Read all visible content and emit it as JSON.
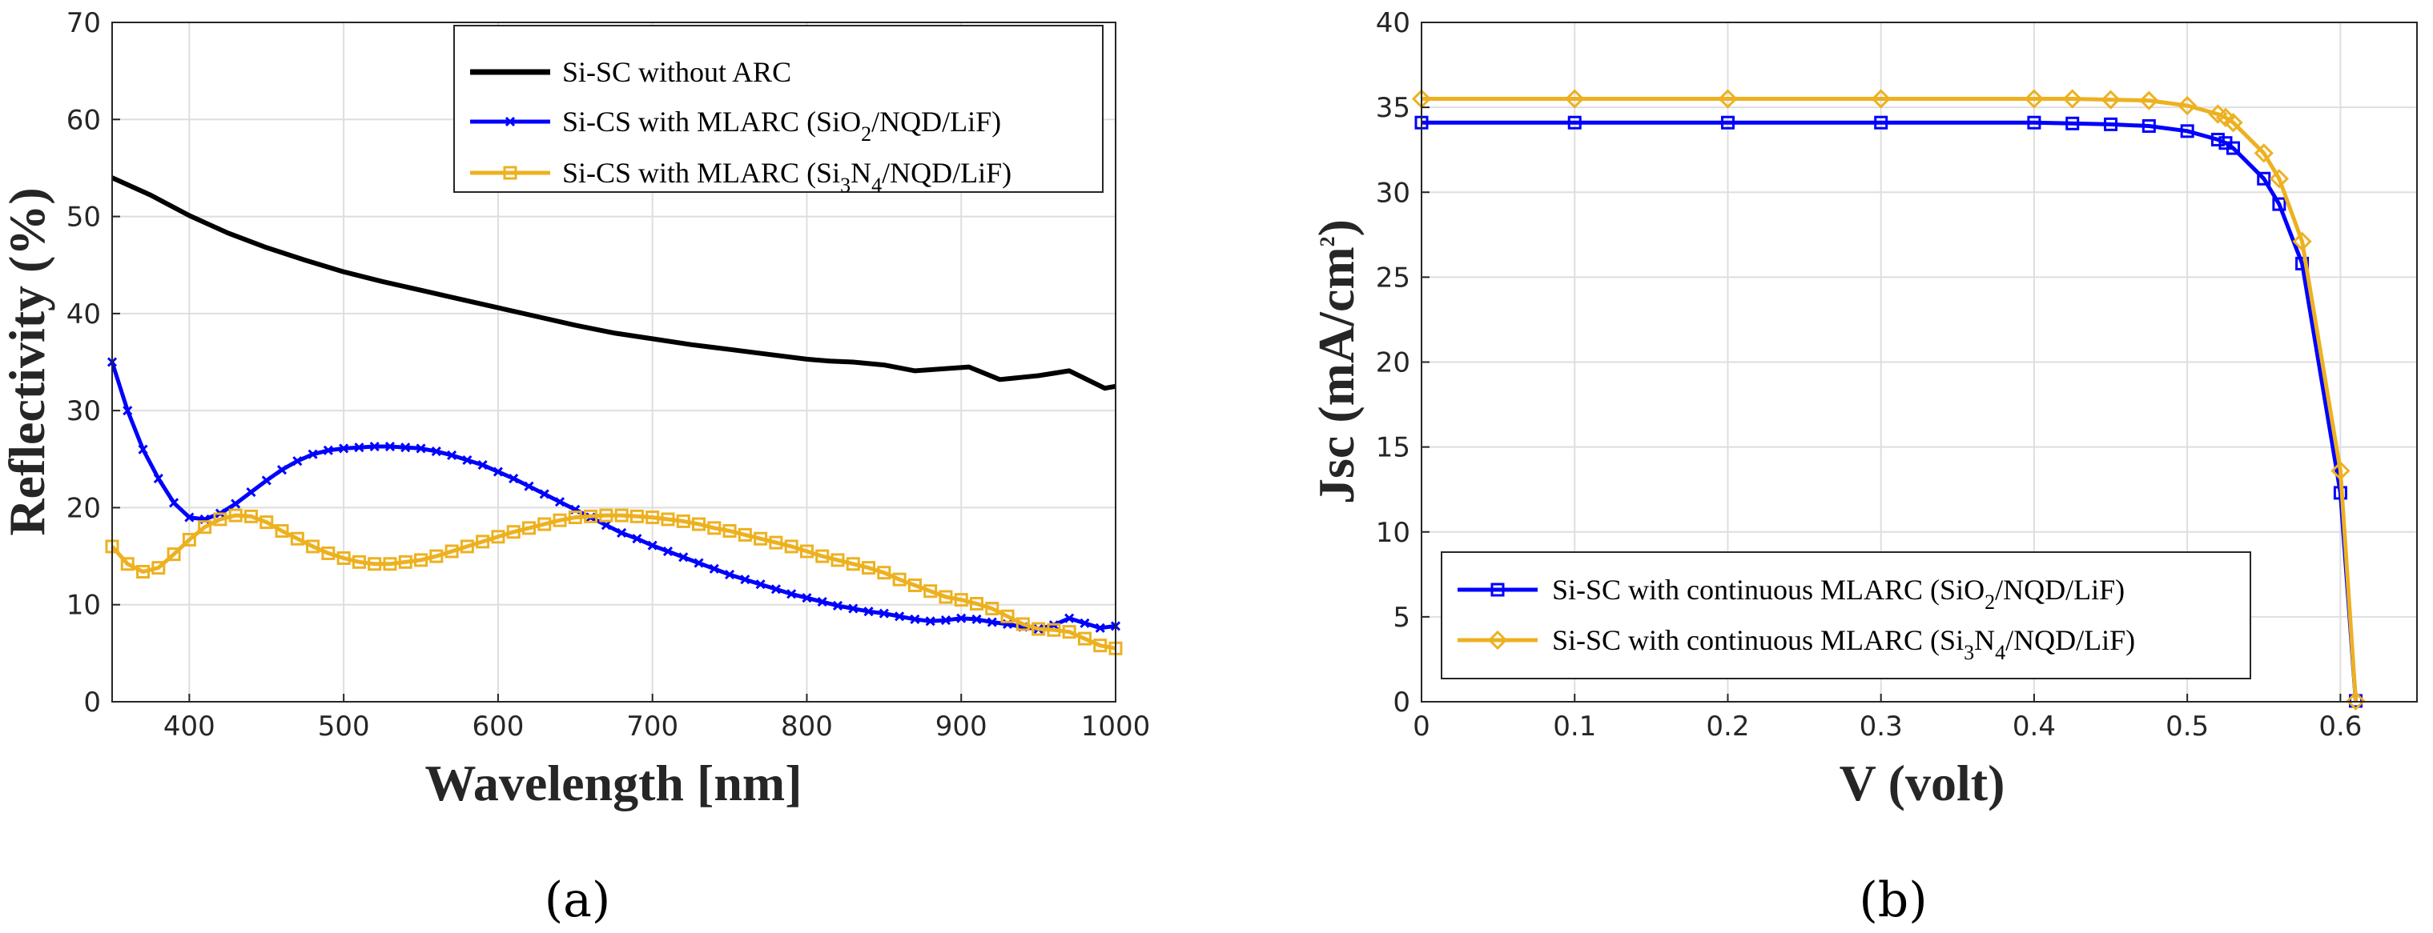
{
  "colors": {
    "black": "#000000",
    "blue": "#0000ff",
    "orange": "#edb120",
    "axis": "#262626",
    "grid": "#dedede"
  },
  "panels": {
    "a": "(a)",
    "b": "(b)"
  },
  "chart_data": [
    {
      "type": "line",
      "panel": "a",
      "xlabel": "Wavelength [nm]",
      "ylabel": "Reflectivity (%)",
      "xlim": [
        350,
        1000
      ],
      "ylim": [
        0,
        70
      ],
      "xticks": [
        400,
        500,
        600,
        700,
        800,
        900,
        1000
      ],
      "yticks": [
        0,
        10,
        20,
        30,
        40,
        50,
        60,
        70
      ],
      "grid": true,
      "legend_position": "top-right",
      "series": [
        {
          "key": "noarc",
          "legend": {
            "main": "Si-SC without ARC",
            "parts": []
          },
          "color": "#000000",
          "marker": "none",
          "points": [
            [
              350,
              54
            ],
            [
              375,
              52.2
            ],
            [
              400,
              50.1
            ],
            [
              425,
              48.3
            ],
            [
              450,
              46.8
            ],
            [
              475,
              45.5
            ],
            [
              500,
              44.3
            ],
            [
              525,
              43.3
            ],
            [
              550,
              42.4
            ],
            [
              575,
              41.5
            ],
            [
              600,
              40.6
            ],
            [
              625,
              39.7
            ],
            [
              650,
              38.8
            ],
            [
              675,
              38
            ],
            [
              700,
              37.4
            ],
            [
              725,
              36.8
            ],
            [
              750,
              36.3
            ],
            [
              775,
              35.8
            ],
            [
              800,
              35.3
            ],
            [
              815,
              35.1
            ],
            [
              830,
              35
            ],
            [
              850,
              34.7
            ],
            [
              870,
              34.1
            ],
            [
              905,
              34.5
            ],
            [
              925,
              33.2
            ],
            [
              950,
              33.6
            ],
            [
              970,
              34.1
            ],
            [
              993,
              32.3
            ],
            [
              1000,
              32.5
            ]
          ]
        },
        {
          "key": "sio2",
          "legend": {
            "main": "",
            "parts": [
              "Si-CS with MLARC (SiO",
              "2",
              "/NQD/LiF)"
            ]
          },
          "color": "#0000ff",
          "marker": "x",
          "points": [
            [
              350,
              35
            ],
            [
              360,
              30
            ],
            [
              370,
              26
            ],
            [
              380,
              23
            ],
            [
              390,
              20.5
            ],
            [
              400,
              19
            ],
            [
              410,
              18.8
            ],
            [
              420,
              19.4
            ],
            [
              430,
              20.4
            ],
            [
              440,
              21.6
            ],
            [
              450,
              22.8
            ],
            [
              460,
              23.9
            ],
            [
              470,
              24.8
            ],
            [
              480,
              25.5
            ],
            [
              490,
              25.9
            ],
            [
              500,
              26.1
            ],
            [
              510,
              26.2
            ],
            [
              520,
              26.3
            ],
            [
              530,
              26.3
            ],
            [
              540,
              26.2
            ],
            [
              550,
              26.1
            ],
            [
              560,
              25.8
            ],
            [
              570,
              25.4
            ],
            [
              580,
              24.9
            ],
            [
              590,
              24.4
            ],
            [
              600,
              23.7
            ],
            [
              610,
              23
            ],
            [
              620,
              22.2
            ],
            [
              630,
              21.4
            ],
            [
              640,
              20.6
            ],
            [
              650,
              19.8
            ],
            [
              660,
              19
            ],
            [
              670,
              18.2
            ],
            [
              680,
              17.4
            ],
            [
              690,
              16.8
            ],
            [
              700,
              16.1
            ],
            [
              710,
              15.5
            ],
            [
              720,
              14.9
            ],
            [
              730,
              14.3
            ],
            [
              740,
              13.7
            ],
            [
              750,
              13.1
            ],
            [
              760,
              12.6
            ],
            [
              770,
              12.1
            ],
            [
              780,
              11.6
            ],
            [
              790,
              11.1
            ],
            [
              800,
              10.7
            ],
            [
              810,
              10.3
            ],
            [
              820,
              9.9
            ],
            [
              830,
              9.6
            ],
            [
              840,
              9.3
            ],
            [
              850,
              9.1
            ],
            [
              860,
              8.8
            ],
            [
              870,
              8.5
            ],
            [
              880,
              8.3
            ],
            [
              890,
              8.4
            ],
            [
              900,
              8.6
            ],
            [
              910,
              8.5
            ],
            [
              920,
              8.2
            ],
            [
              930,
              8
            ],
            [
              940,
              7.7
            ],
            [
              950,
              7.5
            ],
            [
              960,
              7.9
            ],
            [
              970,
              8.6
            ],
            [
              980,
              8.1
            ],
            [
              990,
              7.6
            ],
            [
              1000,
              7.8
            ]
          ]
        },
        {
          "key": "si3n4",
          "legend": {
            "main": "",
            "parts": [
              "Si-CS with MLARC (Si",
              "3",
              "N",
              "4",
              "/NQD/LiF)"
            ]
          },
          "color": "#edb120",
          "marker": "square",
          "points": [
            [
              350,
              16
            ],
            [
              360,
              14.2
            ],
            [
              370,
              13.4
            ],
            [
              380,
              13.8
            ],
            [
              390,
              15.2
            ],
            [
              400,
              16.7
            ],
            [
              410,
              18
            ],
            [
              420,
              18.8
            ],
            [
              430,
              19.2
            ],
            [
              440,
              19.1
            ],
            [
              450,
              18.5
            ],
            [
              460,
              17.6
            ],
            [
              470,
              16.8
            ],
            [
              480,
              16
            ],
            [
              490,
              15.3
            ],
            [
              500,
              14.8
            ],
            [
              510,
              14.4
            ],
            [
              520,
              14.2
            ],
            [
              530,
              14.2
            ],
            [
              540,
              14.4
            ],
            [
              550,
              14.6
            ],
            [
              560,
              15
            ],
            [
              570,
              15.5
            ],
            [
              580,
              16
            ],
            [
              590,
              16.5
            ],
            [
              600,
              17
            ],
            [
              610,
              17.5
            ],
            [
              620,
              17.9
            ],
            [
              630,
              18.3
            ],
            [
              640,
              18.7
            ],
            [
              650,
              19
            ],
            [
              660,
              19.1
            ],
            [
              670,
              19.2
            ],
            [
              680,
              19.2
            ],
            [
              690,
              19.1
            ],
            [
              700,
              19
            ],
            [
              710,
              18.8
            ],
            [
              720,
              18.6
            ],
            [
              730,
              18.3
            ],
            [
              740,
              17.9
            ],
            [
              750,
              17.6
            ],
            [
              760,
              17.2
            ],
            [
              770,
              16.8
            ],
            [
              780,
              16.4
            ],
            [
              790,
              16
            ],
            [
              800,
              15.5
            ],
            [
              810,
              15
            ],
            [
              820,
              14.6
            ],
            [
              830,
              14.2
            ],
            [
              840,
              13.8
            ],
            [
              850,
              13.3
            ],
            [
              860,
              12.6
            ],
            [
              870,
              12
            ],
            [
              880,
              11.4
            ],
            [
              890,
              10.8
            ],
            [
              900,
              10.5
            ],
            [
              910,
              10.1
            ],
            [
              920,
              9.6
            ],
            [
              930,
              8.8
            ],
            [
              940,
              8
            ],
            [
              950,
              7.5
            ],
            [
              960,
              7.4
            ],
            [
              970,
              7.2
            ],
            [
              980,
              6.5
            ],
            [
              990,
              5.8
            ],
            [
              1000,
              5.5
            ]
          ]
        }
      ]
    },
    {
      "type": "line",
      "panel": "b",
      "xlabel": "V (volt)",
      "ylabel": "Jsc (mA/cm2)",
      "ylabel_parts": {
        "main": "Jsc (mA/cm",
        "sup": "2",
        "end": ")"
      },
      "xlim": [
        0,
        0.65
      ],
      "ylim": [
        0,
        40
      ],
      "xticks": [
        0,
        0.1,
        0.2,
        0.3,
        0.4,
        0.5,
        0.6
      ],
      "xtick_labels": [
        "0",
        "0.1",
        "0.2",
        "0.3",
        "0.4",
        "0.5",
        "0.6"
      ],
      "yticks": [
        0,
        5,
        10,
        15,
        20,
        25,
        30,
        35,
        40
      ],
      "grid": true,
      "legend_position": "bottom-left",
      "series": [
        {
          "key": "sio2",
          "legend": {
            "main": "",
            "parts": [
              "Si-SC with continuous MLARC (SiO",
              "2",
              "/NQD/LiF)"
            ]
          },
          "color": "#0000ff",
          "marker": "square",
          "points": [
            [
              0,
              34.1
            ],
            [
              0.1,
              34.1
            ],
            [
              0.2,
              34.1
            ],
            [
              0.3,
              34.1
            ],
            [
              0.4,
              34.1
            ],
            [
              0.425,
              34.05
            ],
            [
              0.45,
              34
            ],
            [
              0.475,
              33.9
            ],
            [
              0.5,
              33.6
            ],
            [
              0.52,
              33.1
            ],
            [
              0.525,
              32.9
            ],
            [
              0.53,
              32.6
            ],
            [
              0.55,
              30.8
            ],
            [
              0.56,
              29.3
            ],
            [
              0.575,
              25.8
            ],
            [
              0.6,
              12.3
            ],
            [
              0.61,
              0.05
            ]
          ]
        },
        {
          "key": "si3n4",
          "legend": {
            "main": "",
            "parts": [
              "Si-SC with continuous MLARC (Si",
              "3",
              "N",
              "4",
              "/NQD/LiF)"
            ]
          },
          "color": "#edb120",
          "marker": "diamond",
          "points": [
            [
              0,
              35.5
            ],
            [
              0.1,
              35.5
            ],
            [
              0.2,
              35.5
            ],
            [
              0.3,
              35.5
            ],
            [
              0.4,
              35.5
            ],
            [
              0.425,
              35.5
            ],
            [
              0.45,
              35.45
            ],
            [
              0.475,
              35.4
            ],
            [
              0.5,
              35.1
            ],
            [
              0.52,
              34.6
            ],
            [
              0.525,
              34.4
            ],
            [
              0.53,
              34.1
            ],
            [
              0.55,
              32.3
            ],
            [
              0.56,
              30.8
            ],
            [
              0.575,
              27.1
            ],
            [
              0.6,
              13.6
            ],
            [
              0.61,
              0.05
            ]
          ]
        }
      ]
    }
  ]
}
